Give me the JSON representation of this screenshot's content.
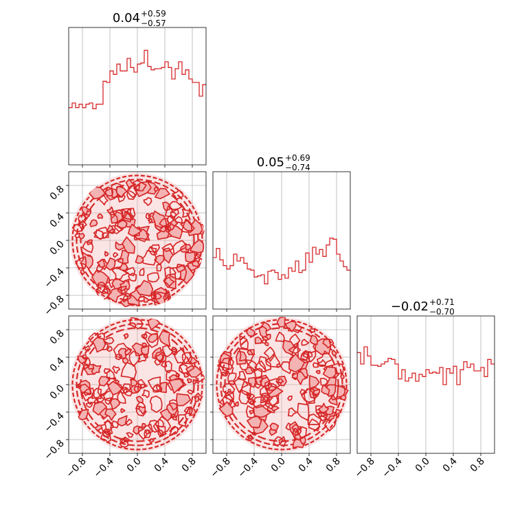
{
  "chart_data": {
    "type": "corner",
    "color": "#d62728",
    "contour_fill": "#f4b3b3",
    "grid": true,
    "parameters": [
      {
        "median": "0.04",
        "plus": "+0.59",
        "minus": "−0.57"
      },
      {
        "median": "0.05",
        "plus": "+0.69",
        "minus": "−0.74"
      },
      {
        "median": "−0.02",
        "plus": "+0.71",
        "minus": "−0.70"
      }
    ],
    "axis_range": [
      -1.0,
      1.0
    ],
    "tick_values": [
      -0.8,
      -0.4,
      0.0,
      0.4,
      0.8
    ],
    "tick_labels": [
      "−0.8",
      "−0.4",
      "0.0",
      "0.4",
      "0.8"
    ],
    "histograms": [
      {
        "values": [
          0.5,
          0.54,
          0.5,
          0.53,
          0.5,
          0.53,
          0.54,
          0.49,
          0.53,
          0.53,
          0.73,
          0.72,
          0.82,
          0.79,
          0.88,
          0.82,
          0.82,
          0.93,
          0.85,
          0.81,
          0.88,
          0.89,
          1.0,
          0.86,
          0.83,
          0.84,
          0.84,
          0.85,
          0.9,
          0.85,
          0.75,
          0.84,
          0.9,
          0.79,
          0.83,
          0.75,
          0.72,
          0.72,
          0.6,
          0.7
        ]
      },
      {
        "values": [
          0.45,
          0.53,
          0.43,
          0.38,
          0.35,
          0.38,
          0.48,
          0.42,
          0.45,
          0.4,
          0.35,
          0.34,
          0.28,
          0.29,
          0.3,
          0.22,
          0.33,
          0.34,
          0.32,
          0.26,
          0.3,
          0.27,
          0.36,
          0.33,
          0.42,
          0.32,
          0.34,
          0.49,
          0.41,
          0.54,
          0.48,
          0.52,
          0.46,
          0.56,
          0.62,
          0.61,
          0.48,
          0.42,
          0.37,
          0.34
        ]
      },
      {
        "values": [
          0.88,
          0.78,
          0.93,
          0.85,
          0.77,
          0.77,
          0.76,
          0.78,
          0.8,
          0.83,
          0.82,
          0.78,
          0.65,
          0.73,
          0.63,
          0.66,
          0.7,
          0.63,
          0.69,
          0.67,
          0.73,
          0.7,
          0.71,
          0.7,
          0.75,
          0.6,
          0.74,
          0.7,
          0.76,
          0.6,
          0.73,
          0.8,
          0.75,
          0.78,
          0.72,
          0.72,
          0.75,
          0.67,
          0.82,
          0.78
        ]
      }
    ],
    "hist_ylim": [
      0,
      1.2
    ],
    "scatter_panels": [
      {
        "x_param": 0,
        "y_param": 1
      },
      {
        "x_param": 0,
        "y_param": 2
      },
      {
        "x_param": 1,
        "y_param": 2
      }
    ],
    "density_domain": "unit disk"
  }
}
